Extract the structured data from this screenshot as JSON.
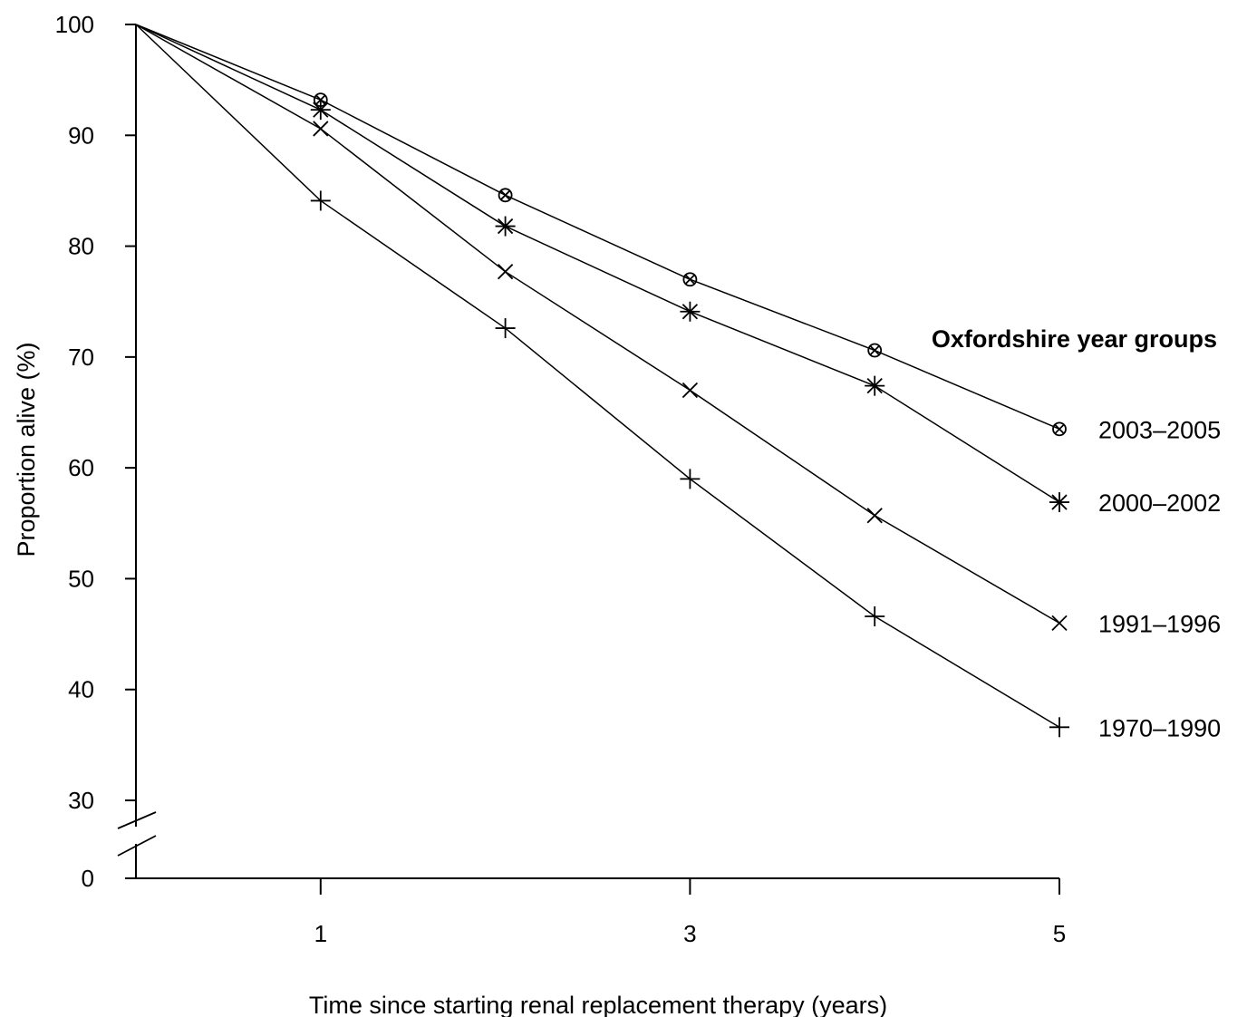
{
  "chart_data": {
    "type": "line",
    "title": "",
    "xlabel": "Time since starting renal replacement therapy (years)",
    "ylabel": "Proportion alive (%)",
    "x": [
      0,
      1,
      2,
      3,
      4,
      5
    ],
    "x_tick_labels": [
      "1",
      "3",
      "5"
    ],
    "x_ticks": [
      1,
      3,
      5
    ],
    "y_tick_labels": [
      "100",
      "90",
      "80",
      "70",
      "60",
      "50",
      "40",
      "30",
      "0"
    ],
    "y_ticks": [
      100,
      90,
      80,
      70,
      60,
      50,
      40,
      30,
      0
    ],
    "ylim": [
      0,
      100
    ],
    "xlim": [
      0,
      5
    ],
    "axis_break": "between 0 and 30 on y-axis",
    "grid": false,
    "legend_title": "Oxfordshire year groups",
    "legend_placement": "right, labels at series end points",
    "series": [
      {
        "name": "2003–2005",
        "marker": "circle-x",
        "values": [
          100,
          93.2,
          84.6,
          77.0,
          70.6,
          63.5
        ]
      },
      {
        "name": "2000–2002",
        "marker": "asterisk",
        "values": [
          100,
          92.3,
          81.8,
          74.1,
          67.4,
          56.9
        ]
      },
      {
        "name": "1991–1996",
        "marker": "x",
        "values": [
          100,
          90.6,
          77.7,
          67.0,
          55.7,
          46.0
        ]
      },
      {
        "name": "1970–1990",
        "marker": "plus",
        "values": [
          100,
          84.1,
          72.6,
          59.0,
          46.6,
          36.6
        ]
      }
    ],
    "colors": {
      "line": "#000000",
      "background": "#ffffff"
    }
  }
}
